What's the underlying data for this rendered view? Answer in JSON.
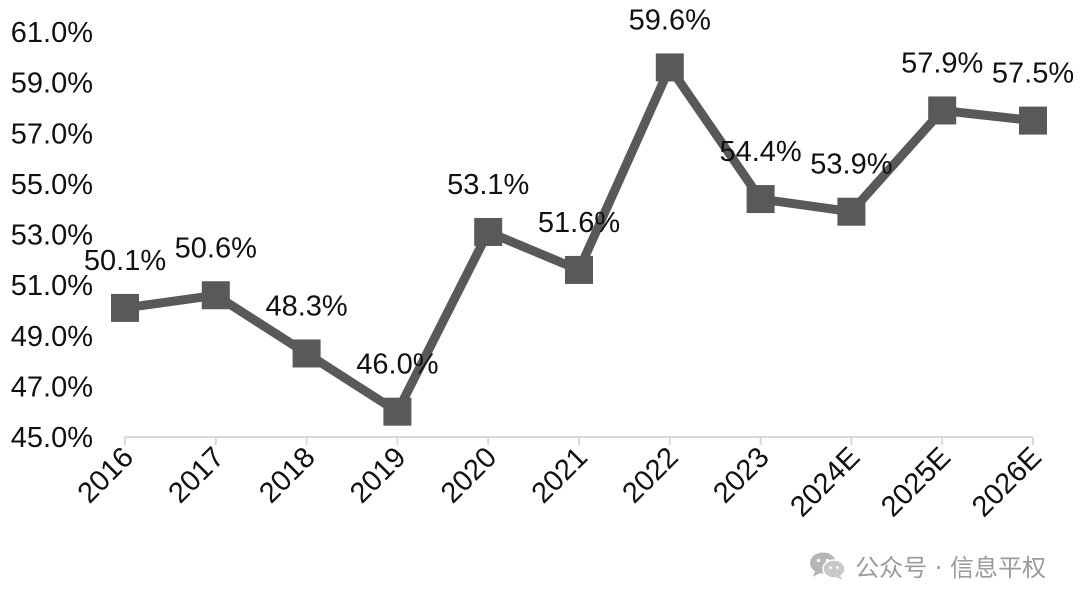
{
  "chart_data": {
    "type": "line",
    "title": "",
    "xlabel": "",
    "ylabel": "",
    "categories": [
      "2016",
      "2017",
      "2018",
      "2019",
      "2020",
      "2021",
      "2022",
      "2023",
      "2024E",
      "2025E",
      "2026E"
    ],
    "series": [
      {
        "values": [
          50.1,
          50.6,
          48.3,
          46.0,
          53.1,
          51.6,
          59.6,
          54.4,
          53.9,
          57.9,
          57.5
        ],
        "labels": [
          "50.1%",
          "50.6%",
          "48.3%",
          "46.0%",
          "53.1%",
          "51.6%",
          "59.6%",
          "54.4%",
          "53.9%",
          "57.9%",
          "57.5%"
        ],
        "color": "#595959",
        "marker": "square"
      }
    ],
    "ylim": [
      45.0,
      61.0
    ],
    "yticks": [
      45.0,
      47.0,
      49.0,
      51.0,
      53.0,
      55.0,
      57.0,
      59.0,
      61.0
    ],
    "ytick_labels": [
      "45.0%",
      "47.0%",
      "49.0%",
      "51.0%",
      "53.0%",
      "55.0%",
      "57.0%",
      "59.0%",
      "61.0%"
    ],
    "grid": false,
    "legend": "none",
    "axis_color": "#d9d9d9",
    "text_color": "#111111"
  },
  "watermark": {
    "icon": "wechat-icon",
    "text": "公众号 · 信息平权",
    "color": "#9a9a9a"
  }
}
